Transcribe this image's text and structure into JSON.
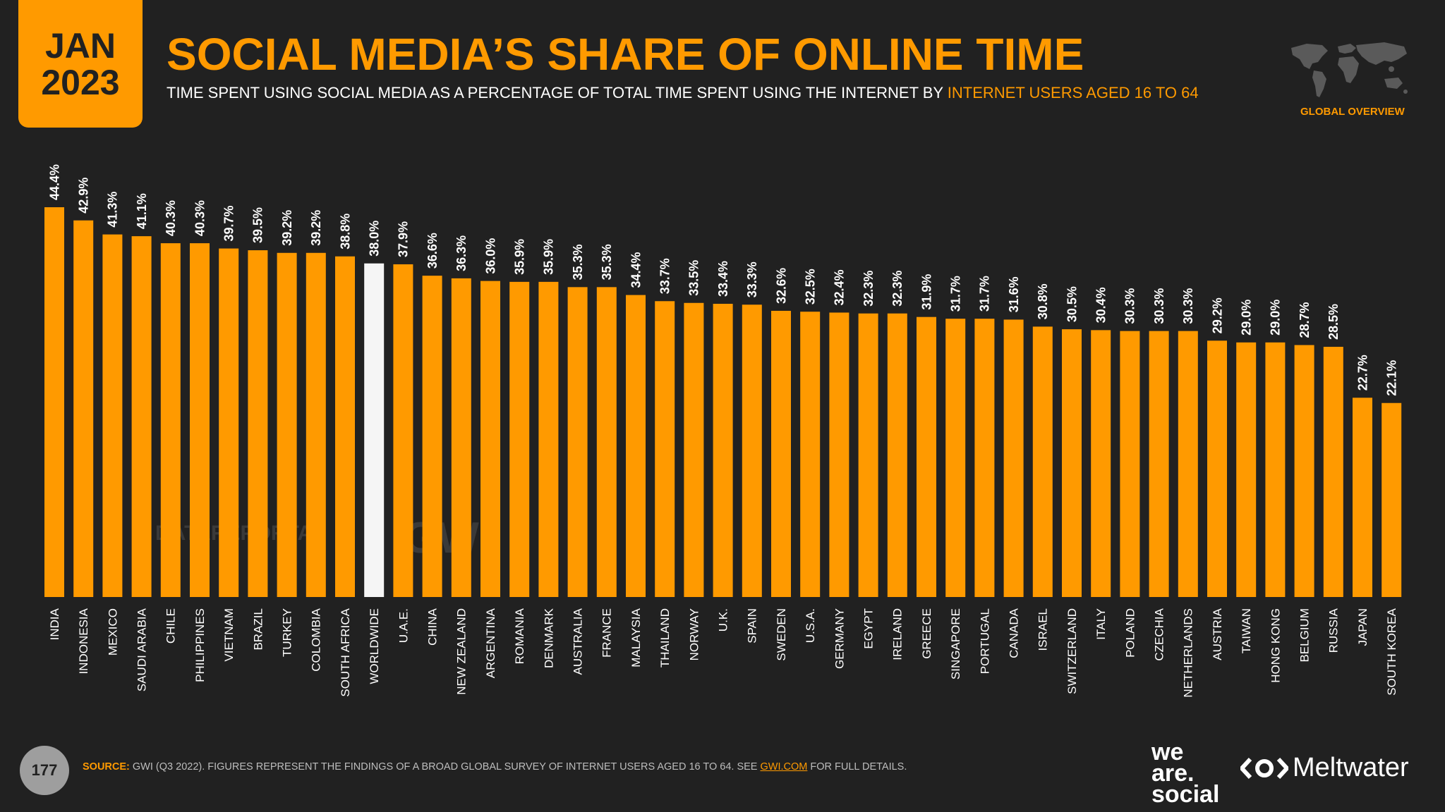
{
  "header": {
    "month": "JAN",
    "year": "2023",
    "title": "SOCIAL MEDIA’S SHARE OF ONLINE TIME",
    "subtitle_main": "TIME SPENT USING SOCIAL MEDIA AS A PERCENTAGE OF TOTAL TIME SPENT USING THE INTERNET BY ",
    "subtitle_highlight": "INTERNET USERS AGED 16 TO 64",
    "overview_label": "GLOBAL OVERVIEW"
  },
  "watermarks": {
    "datareportal": "DATAREPORTAL",
    "gwi": "GWI."
  },
  "footer": {
    "page_number": "177",
    "source_label": "SOURCE:",
    "source_text": " GWI (Q3 2022). FIGURES REPRESENT THE FINDINGS OF A BROAD GLOBAL SURVEY OF INTERNET USERS AGED 16 TO 64. SEE ",
    "source_link": "GWI.COM",
    "source_end": " FOR FULL DETAILS.",
    "brand_line1": "we",
    "brand_line2": "are.",
    "brand_line3": "social",
    "brand2": "Meltwater"
  },
  "colors": {
    "bar": "#FF9A00",
    "highlight_bar": "#F5F5F5",
    "background": "#212121",
    "accent": "#FF9A00"
  },
  "chart_data": {
    "type": "bar",
    "title": "SOCIAL MEDIA’S SHARE OF ONLINE TIME",
    "ylabel": "",
    "ylim": [
      0,
      44.4
    ],
    "highlight_category": "WORLDWIDE",
    "categories": [
      "INDIA",
      "INDONESIA",
      "MEXICO",
      "SAUDI ARABIA",
      "CHILE",
      "PHILIPPINES",
      "VIETNAM",
      "BRAZIL",
      "TURKEY",
      "COLOMBIA",
      "SOUTH AFRICA",
      "WORLDWIDE",
      "U.A.E.",
      "CHINA",
      "NEW ZEALAND",
      "ARGENTINA",
      "ROMANIA",
      "DENMARK",
      "AUSTRALIA",
      "FRANCE",
      "MALAYSIA",
      "THAILAND",
      "NORWAY",
      "U.K.",
      "SPAIN",
      "SWEDEN",
      "U.S.A.",
      "GERMANY",
      "EGYPT",
      "IRELAND",
      "GREECE",
      "SINGAPORE",
      "PORTUGAL",
      "CANADA",
      "ISRAEL",
      "SWITZERLAND",
      "ITALY",
      "POLAND",
      "CZECHIA",
      "NETHERLANDS",
      "AUSTRIA",
      "TAIWAN",
      "HONG KONG",
      "BELGIUM",
      "RUSSIA",
      "JAPAN",
      "SOUTH KOREA"
    ],
    "values": [
      44.4,
      42.9,
      41.3,
      41.1,
      40.3,
      40.3,
      39.7,
      39.5,
      39.2,
      39.2,
      38.8,
      38.0,
      37.9,
      36.6,
      36.3,
      36.0,
      35.9,
      35.9,
      35.3,
      35.3,
      34.4,
      33.7,
      33.5,
      33.4,
      33.3,
      32.6,
      32.5,
      32.4,
      32.3,
      32.3,
      31.9,
      31.7,
      31.7,
      31.6,
      30.8,
      30.5,
      30.4,
      30.3,
      30.3,
      30.3,
      29.2,
      29.0,
      29.0,
      28.7,
      28.5,
      22.7,
      22.1
    ],
    "labels": [
      "44.4%",
      "42.9%",
      "41.3%",
      "41.1%",
      "40.3%",
      "40.3%",
      "39.7%",
      "39.5%",
      "39.2%",
      "39.2%",
      "38.8%",
      "38.0%",
      "37.9%",
      "36.6%",
      "36.3%",
      "36.0%",
      "35.9%",
      "35.9%",
      "35.3%",
      "35.3%",
      "34.4%",
      "33.7%",
      "33.5%",
      "33.4%",
      "33.3%",
      "32.6%",
      "32.5%",
      "32.4%",
      "32.3%",
      "32.3%",
      "31.9%",
      "31.7%",
      "31.7%",
      "31.6%",
      "30.8%",
      "30.5%",
      "30.4%",
      "30.3%",
      "30.3%",
      "30.3%",
      "29.2%",
      "29.0%",
      "29.0%",
      "28.7%",
      "28.5%",
      "22.7%",
      "22.1%"
    ]
  }
}
